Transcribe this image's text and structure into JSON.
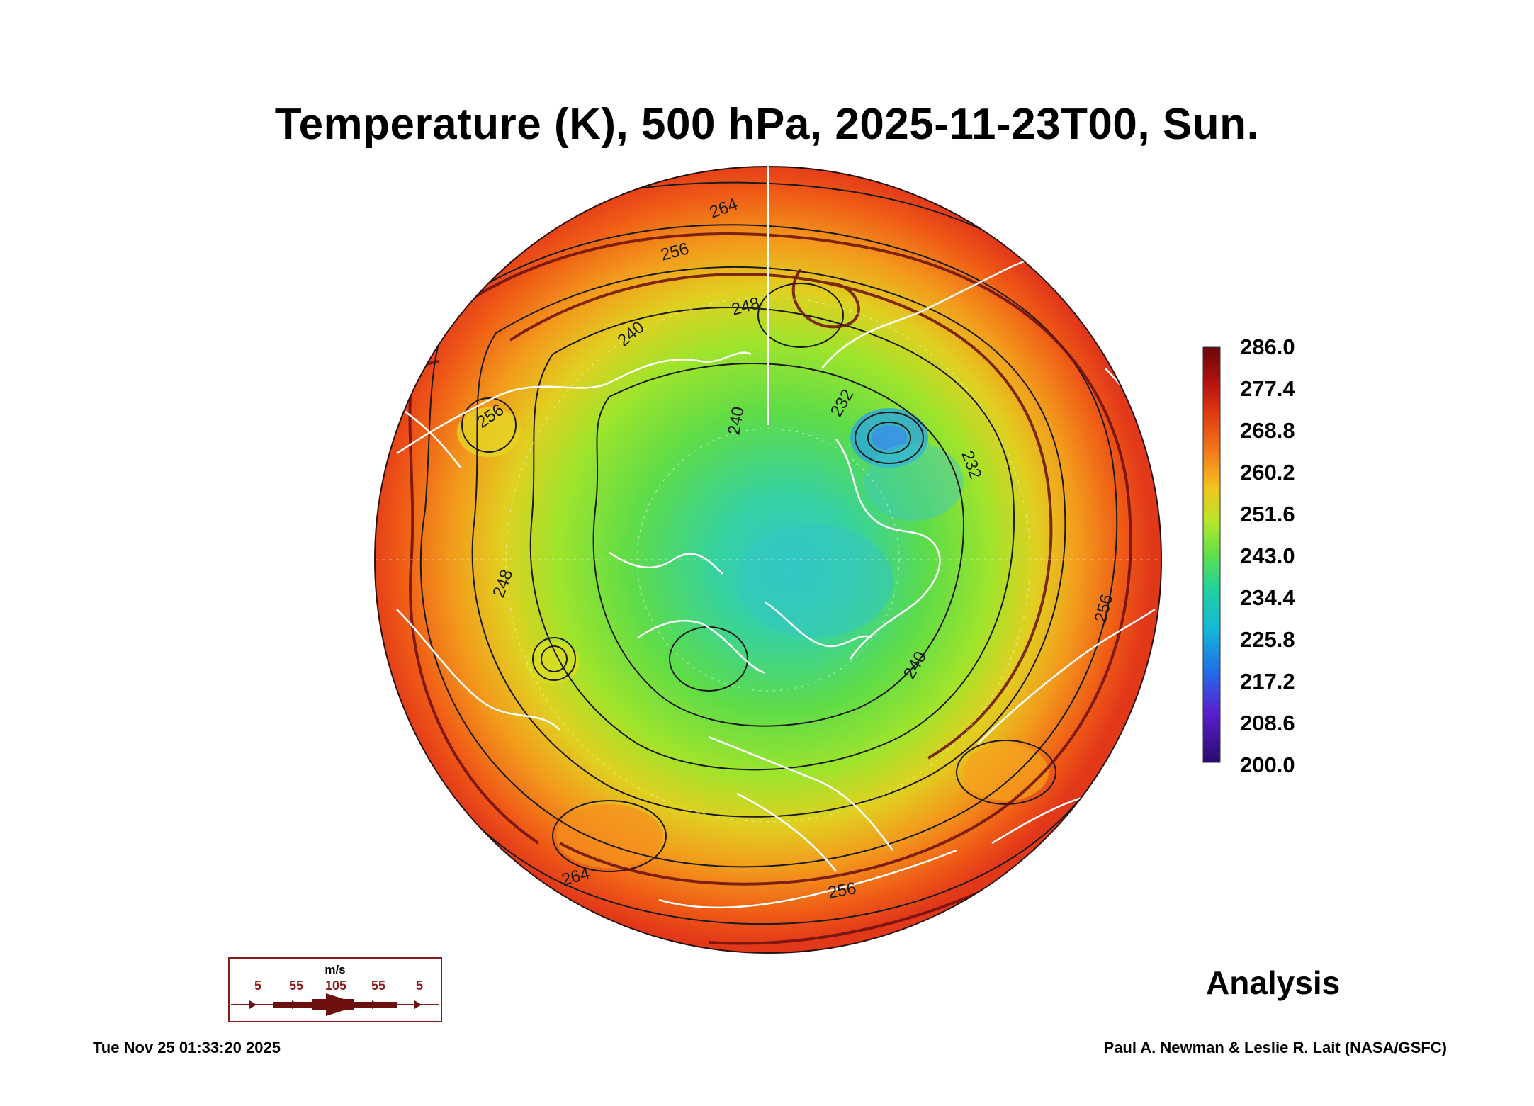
{
  "title": "Temperature (K), 500 hPa, 2025-11-23T00, Sun.",
  "map": {
    "projection": "north polar stereographic",
    "field": "temperature",
    "contour_labels": [
      "264",
      "256",
      "248",
      "240",
      "240",
      "232",
      "232",
      "256",
      "248",
      "240",
      "256",
      "256",
      "264"
    ],
    "colors": {
      "coastline": "#ffffff",
      "contour": "#1a1a1a",
      "streamline": "#6b0f0f"
    }
  },
  "colorbar": {
    "labels": [
      "286.0",
      "277.4",
      "268.8",
      "260.2",
      "251.6",
      "243.0",
      "234.4",
      "225.8",
      "217.2",
      "208.6",
      "200.0"
    ],
    "min": 200.0,
    "max": 286.0,
    "colors": [
      "#2a0a6e",
      "#5a1fcf",
      "#1f6fe8",
      "#14b8d8",
      "#22d29b",
      "#5fe04a",
      "#b8e62a",
      "#f2c420",
      "#f27a1a",
      "#e03a12",
      "#b01010",
      "#6a0808"
    ]
  },
  "wind_legend": {
    "unit": "m/s",
    "values": [
      "5",
      "55",
      "105",
      "55",
      "5"
    ]
  },
  "analysis_label": "Analysis",
  "timestamp": "Tue Nov 25 01:33:20 2025",
  "credit": "Paul A. Newman & Leslie R. Lait (NASA/GSFC)"
}
